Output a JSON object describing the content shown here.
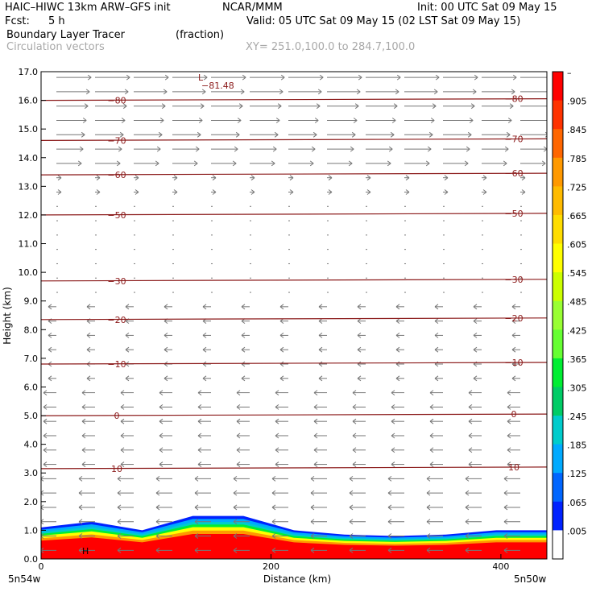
{
  "header": {
    "model": "HAIC–HIWC 13km ARW–GFS init",
    "org": "NCAR/MMM",
    "init": "Init: 00 UTC Sat 09 May 15",
    "fcst_label": "Fcst:",
    "fcst_value": "5 h",
    "valid": "Valid: 05 UTC Sat 09 May 15 (02 LST Sat 09 May 15)",
    "field": "Boundary Layer Tracer",
    "field_units": "(fraction)",
    "vectors": "Circulation vectors",
    "xy": "XY= 251.0,100.0 to 284.7,100.0"
  },
  "chart_data": {
    "type": "heatmap",
    "title": "Boundary Layer Tracer",
    "xlabel": "Distance (km)",
    "ylabel": "Height (km)",
    "xlim": [
      0,
      440
    ],
    "ylim": [
      0,
      17
    ],
    "x_ticks": [
      "0",
      "200",
      "400"
    ],
    "x_end_labels": [
      "5n54w",
      "5n50w"
    ],
    "y_ticks": [
      "0.0",
      "1.0",
      "2.0",
      "3.0",
      "4.0",
      "5.0",
      "6.0",
      "7.0",
      "8.0",
      "9.0",
      "10.0",
      "11.0",
      "12.0",
      "13.0",
      "14.0",
      "15.0",
      "16.0",
      "17.0"
    ],
    "colorbar_labels": [
      "–",
      ".905",
      ".845",
      ".785",
      ".725",
      ".665",
      ".605",
      ".545",
      ".485",
      ".425",
      ".365",
      ".305",
      ".245",
      ".185",
      ".125",
      ".065",
      ".005"
    ],
    "colorbar_colors": [
      "#ff0000",
      "#ff3300",
      "#ff6600",
      "#ff9900",
      "#ffbb00",
      "#ffdd00",
      "#ffff00",
      "#ccff00",
      "#99ff33",
      "#66ff33",
      "#00ee33",
      "#00cc66",
      "#00cccc",
      "#00aaff",
      "#0066ff",
      "#0022ff",
      "#ffffff"
    ],
    "temperature_contours": [
      {
        "label": "10",
        "y": 3.15
      },
      {
        "label": "0",
        "y": 5.0
      },
      {
        "label": "−10",
        "y": 6.8
      },
      {
        "label": "−20",
        "y": 8.35
      },
      {
        "label": "−30",
        "y": 9.7
      },
      {
        "label": "−50",
        "y": 12.0
      },
      {
        "label": "−60",
        "y": 13.4
      },
      {
        "label": "−70",
        "y": 14.6
      },
      {
        "label": "−80",
        "y": 16.0
      }
    ],
    "minimum_marker": {
      "label": "L",
      "value": "−81.48"
    },
    "high_marker": "H",
    "boundary_layer_top_km": [
      1.1,
      1.3,
      1.0,
      1.5,
      1.5,
      1.0,
      0.85,
      0.8,
      0.85,
      1.0,
      1.0
    ]
  }
}
